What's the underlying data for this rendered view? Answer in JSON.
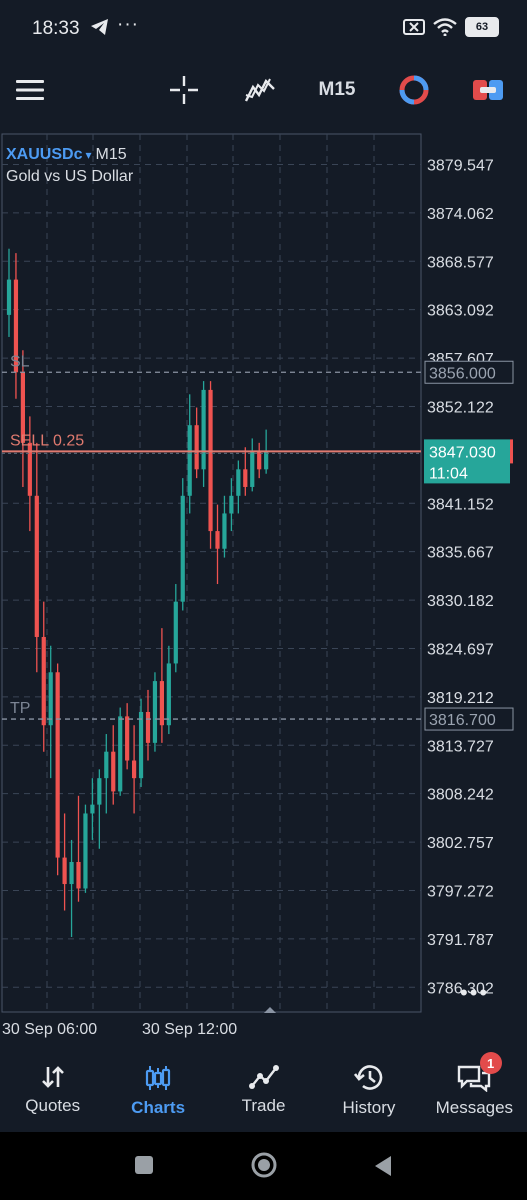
{
  "status_bar": {
    "time": "18:33",
    "dots": "···",
    "battery": "63"
  },
  "toolbar": {
    "timeframe": "M15"
  },
  "chart": {
    "symbol": "XAUUSDc",
    "symbol_arrow": "▾",
    "timeframe": "M15",
    "description": "Gold vs US Dollar",
    "sl_label": "SL",
    "tp_label": "TP",
    "sell_label": "SELL 0.25",
    "sl_price": "3856.000",
    "tp_price": "3816.700",
    "current_price": "3847.030",
    "countdown": "11:04",
    "colors": {
      "bull": "#26a69a",
      "bear": "#ef5350",
      "sell_line": "#e07a6f",
      "grid": "#3a4556",
      "bg": "#141b26"
    },
    "price_axis": [
      "3879.547",
      "3874.062",
      "3868.577",
      "3863.092",
      "3857.607",
      "3852.122",
      "3841.152",
      "3835.667",
      "3830.182",
      "3824.697",
      "3819.212",
      "3813.727",
      "3808.242",
      "3802.757",
      "3797.272",
      "3791.787",
      "3786.302"
    ],
    "time_axis": [
      "30 Sep 06:00",
      "30 Sep 12:00"
    ],
    "more_label": "•••"
  },
  "chart_data": {
    "type": "candlestick",
    "ylim": [
      3783.5,
      3883.0
    ],
    "candles": [
      {
        "o": 3862.5,
        "h": 3870.0,
        "l": 3860.0,
        "c": 3866.5
      },
      {
        "o": 3866.5,
        "h": 3869.5,
        "l": 3853.0,
        "c": 3856.0
      },
      {
        "o": 3856.0,
        "h": 3858.5,
        "l": 3843.0,
        "c": 3848.0
      },
      {
        "o": 3848.0,
        "h": 3851.0,
        "l": 3838.0,
        "c": 3842.0
      },
      {
        "o": 3842.0,
        "h": 3848.0,
        "l": 3822.0,
        "c": 3826.0
      },
      {
        "o": 3826.0,
        "h": 3830.0,
        "l": 3813.0,
        "c": 3816.0
      },
      {
        "o": 3816.0,
        "h": 3825.0,
        "l": 3810.0,
        "c": 3822.0
      },
      {
        "o": 3822.0,
        "h": 3823.0,
        "l": 3799.0,
        "c": 3801.0
      },
      {
        "o": 3801.0,
        "h": 3806.0,
        "l": 3795.0,
        "c": 3798.0
      },
      {
        "o": 3798.0,
        "h": 3803.0,
        "l": 3792.0,
        "c": 3800.5
      },
      {
        "o": 3800.5,
        "h": 3808.0,
        "l": 3796.0,
        "c": 3797.5
      },
      {
        "o": 3797.5,
        "h": 3807.0,
        "l": 3797.0,
        "c": 3806.0
      },
      {
        "o": 3806.0,
        "h": 3810.0,
        "l": 3803.0,
        "c": 3807.0
      },
      {
        "o": 3807.0,
        "h": 3811.0,
        "l": 3802.0,
        "c": 3810.0
      },
      {
        "o": 3810.0,
        "h": 3815.0,
        "l": 3806.0,
        "c": 3813.0
      },
      {
        "o": 3813.0,
        "h": 3816.0,
        "l": 3807.0,
        "c": 3808.5
      },
      {
        "o": 3808.5,
        "h": 3818.0,
        "l": 3808.0,
        "c": 3817.0
      },
      {
        "o": 3817.0,
        "h": 3818.5,
        "l": 3811.0,
        "c": 3812.0
      },
      {
        "o": 3812.0,
        "h": 3816.0,
        "l": 3806.0,
        "c": 3810.0
      },
      {
        "o": 3810.0,
        "h": 3819.0,
        "l": 3809.0,
        "c": 3817.5
      },
      {
        "o": 3817.5,
        "h": 3820.0,
        "l": 3812.0,
        "c": 3814.0
      },
      {
        "o": 3814.0,
        "h": 3822.0,
        "l": 3813.0,
        "c": 3821.0
      },
      {
        "o": 3821.0,
        "h": 3827.0,
        "l": 3814.0,
        "c": 3816.0
      },
      {
        "o": 3816.0,
        "h": 3825.0,
        "l": 3815.0,
        "c": 3823.0
      },
      {
        "o": 3823.0,
        "h": 3832.0,
        "l": 3822.0,
        "c": 3830.0
      },
      {
        "o": 3830.0,
        "h": 3844.0,
        "l": 3829.0,
        "c": 3842.0
      },
      {
        "o": 3842.0,
        "h": 3853.5,
        "l": 3840.0,
        "c": 3850.0
      },
      {
        "o": 3850.0,
        "h": 3852.0,
        "l": 3844.0,
        "c": 3845.0
      },
      {
        "o": 3845.0,
        "h": 3855.0,
        "l": 3843.0,
        "c": 3854.0
      },
      {
        "o": 3854.0,
        "h": 3855.0,
        "l": 3836.0,
        "c": 3838.0
      },
      {
        "o": 3838.0,
        "h": 3841.0,
        "l": 3832.0,
        "c": 3836.0
      },
      {
        "o": 3836.0,
        "h": 3842.0,
        "l": 3835.0,
        "c": 3840.0
      },
      {
        "o": 3840.0,
        "h": 3844.0,
        "l": 3838.0,
        "c": 3842.0
      },
      {
        "o": 3842.0,
        "h": 3846.0,
        "l": 3840.0,
        "c": 3845.0
      },
      {
        "o": 3845.0,
        "h": 3847.5,
        "l": 3842.0,
        "c": 3843.0
      },
      {
        "o": 3843.0,
        "h": 3848.5,
        "l": 3842.5,
        "c": 3847.0
      },
      {
        "o": 3847.0,
        "h": 3848.0,
        "l": 3844.0,
        "c": 3845.0
      },
      {
        "o": 3845.0,
        "h": 3849.5,
        "l": 3844.5,
        "c": 3847.03
      }
    ]
  },
  "nav": {
    "items": [
      {
        "label": "Quotes"
      },
      {
        "label": "Charts"
      },
      {
        "label": "Trade"
      },
      {
        "label": "History"
      },
      {
        "label": "Messages"
      }
    ],
    "badge": "1"
  }
}
